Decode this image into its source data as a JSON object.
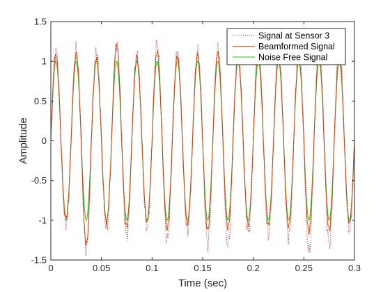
{
  "chart_data": {
    "type": "line",
    "title": "",
    "xlabel": "Time (sec)",
    "ylabel": "Amplitude",
    "xlim": [
      0,
      0.3
    ],
    "ylim": [
      -1.5,
      1.5
    ],
    "xticks": [
      0,
      0.05,
      0.1,
      0.15,
      0.2,
      0.25,
      0.3
    ],
    "xtick_labels": [
      "0",
      "0.05",
      "0.1",
      "0.15",
      "0.2",
      "0.25",
      "0.3"
    ],
    "yticks": [
      -1.5,
      -1,
      -0.5,
      0,
      0.5,
      1,
      1.5
    ],
    "ytick_labels": [
      "-1.5",
      "-1",
      "-0.5",
      "0",
      "0.5",
      "1",
      "1.5"
    ],
    "grid": false,
    "legend_position": "top-right",
    "signal_frequency_hz": 50,
    "series": [
      {
        "name": "Signal at Sensor 3",
        "color": "#b71c1c",
        "style": "dotted",
        "peaks": [
          1.13,
          1.15,
          1.12,
          1.19,
          1.09,
          1.21,
          1.11,
          1.13,
          1.17,
          1.14,
          1.23,
          1.12,
          1.15,
          1.2,
          1.18
        ],
        "troughs": [
          -1.05,
          -1.36,
          -1.1,
          -1.2,
          -1.08,
          -1.25,
          -1.12,
          -1.3,
          -1.32,
          -1.15,
          -1.18,
          -1.22,
          -1.4,
          -1.3,
          -1.12
        ]
      },
      {
        "name": "Beamformed Signal",
        "color": "#d9541a",
        "style": "solid",
        "peaks": [
          1.07,
          1.09,
          1.04,
          1.21,
          1.05,
          1.12,
          1.06,
          1.08,
          1.1,
          1.05,
          1.12,
          1.06,
          1.08,
          1.1,
          1.07
        ],
        "troughs": [
          -0.97,
          -1.3,
          -1.03,
          -1.08,
          -1.02,
          -1.1,
          -1.04,
          -1.12,
          -1.1,
          -1.05,
          -1.06,
          -1.08,
          -1.15,
          -1.12,
          -1.03
        ]
      },
      {
        "name": "Noise Free Signal",
        "color": "#22c322",
        "style": "solid",
        "peaks": [
          1,
          1,
          1,
          1,
          1,
          1,
          1,
          1,
          1,
          1,
          1,
          1,
          1,
          1,
          1
        ],
        "troughs": [
          -1,
          -1,
          -1,
          -1,
          -1,
          -1,
          -1,
          -1,
          -1,
          -1,
          -1,
          -1,
          -1,
          -1,
          -1
        ]
      }
    ]
  }
}
